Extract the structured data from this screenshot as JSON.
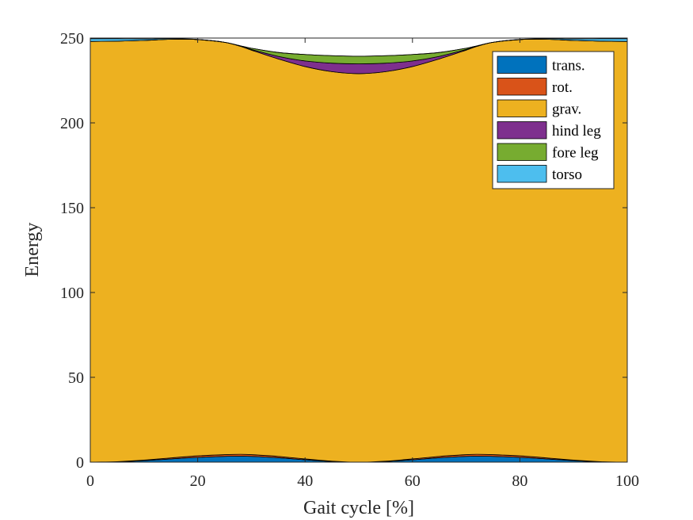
{
  "chart_data": {
    "type": "area",
    "stacked": true,
    "xlabel": "Gait cycle [%]",
    "ylabel": "Energy",
    "xlim": [
      0,
      100
    ],
    "ylim": [
      0,
      250
    ],
    "xticks": [
      0,
      20,
      40,
      60,
      80,
      100
    ],
    "yticks": [
      0,
      50,
      100,
      150,
      200,
      250
    ],
    "grid": false,
    "legend_position": "top-right",
    "x": [
      0,
      5,
      10,
      15,
      20,
      25,
      28,
      30,
      35,
      40,
      45,
      50,
      55,
      60,
      65,
      70,
      72,
      75,
      80,
      85,
      90,
      95,
      100
    ],
    "series": [
      {
        "name": "trans.",
        "color": "#0072BD",
        "values": [
          0,
          0.2,
          0.9,
          1.9,
          2.8,
          3.4,
          3.5,
          3.4,
          2.6,
          1.4,
          0.4,
          0,
          0.4,
          1.4,
          2.6,
          3.4,
          3.5,
          3.4,
          2.8,
          1.9,
          0.9,
          0.2,
          0
        ]
      },
      {
        "name": "rot.",
        "color": "#D95319",
        "values": [
          0,
          0.1,
          0.3,
          0.6,
          0.9,
          1.0,
          1.1,
          1.0,
          0.8,
          0.5,
          0.2,
          0,
          0.2,
          0.5,
          0.8,
          1.0,
          1.1,
          1.0,
          0.9,
          0.6,
          0.3,
          0.1,
          0
        ]
      },
      {
        "name": "grav.",
        "color": "#EDB120",
        "values": [
          248.0,
          247.9,
          247.4,
          246.8,
          245.4,
          243.1,
          240.5,
          238.5,
          234.3,
          231.3,
          229.6,
          229.0,
          229.6,
          231.3,
          234.3,
          238.5,
          240.5,
          243.1,
          245.4,
          246.8,
          247.4,
          247.9,
          248.0
        ]
      },
      {
        "name": "hind leg",
        "color": "#7E2F8E",
        "values": [
          0,
          0,
          0,
          0,
          0,
          0,
          0.1,
          0.4,
          1.5,
          3.3,
          5.0,
          5.8,
          5.0,
          3.3,
          1.5,
          0.4,
          0.1,
          0,
          0,
          0,
          0,
          0,
          0
        ]
      },
      {
        "name": "fore leg",
        "color": "#77AC30",
        "values": [
          0,
          0,
          0,
          0,
          0,
          0,
          0.2,
          0.7,
          2.3,
          3.8,
          4.4,
          4.5,
          4.4,
          3.8,
          2.3,
          0.7,
          0.2,
          0,
          0,
          0,
          0,
          0,
          0
        ]
      },
      {
        "name": "torso",
        "color": "#4DBEEE",
        "values": [
          1.6,
          1.4,
          0.9,
          0.4,
          0.1,
          0,
          0,
          0,
          0,
          0,
          0,
          0,
          0,
          0,
          0,
          0,
          0,
          0,
          0.1,
          0.4,
          0.9,
          1.4,
          1.6
        ]
      }
    ]
  }
}
